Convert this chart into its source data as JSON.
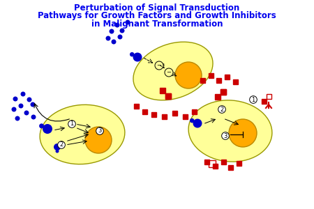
{
  "title_line1": "Perturbation of Signal Transduction",
  "title_line2": "Pathways for Growth Factors and Growth Inhibitors",
  "title_line3": "in Malignant Transformation",
  "title_color": "#0000EE",
  "title_fontsize": 8.5,
  "bg_color": "#FFFFFF",
  "cell_color": "#FFFF99",
  "cell_edge": "#BBBB00",
  "nucleus_color": "#FFAA00",
  "blue_color": "#0000CC",
  "red_color": "#CC0000"
}
